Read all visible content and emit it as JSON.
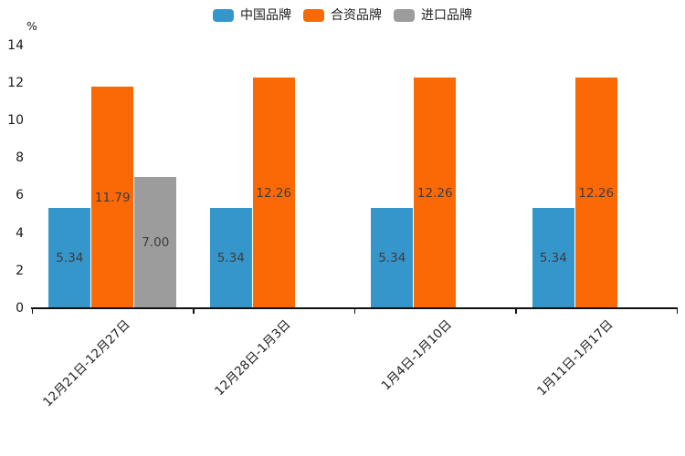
{
  "chart_data": {
    "type": "bar",
    "ylabel": "%",
    "categories": [
      "12月21日-12月27日",
      "12月28日-1月3日",
      "1月4日-1月10日",
      "1月11日-1月17日"
    ],
    "series": [
      {
        "name": "中国品牌",
        "color": "#3596CB",
        "values": [
          5.34,
          5.34,
          5.34,
          5.34
        ]
      },
      {
        "name": "合资品牌",
        "color": "#FB6907",
        "values": [
          11.79,
          12.26,
          12.26,
          12.26
        ]
      },
      {
        "name": "进口品牌",
        "color": "#9C9C9C",
        "values": [
          7.0,
          null,
          null,
          null
        ]
      }
    ],
    "ylim": [
      0,
      14
    ],
    "yticks": [
      0,
      2,
      4,
      6,
      8,
      10,
      12,
      14
    ],
    "grid": false,
    "legend_position": "top",
    "value_label_decimals": 2
  }
}
